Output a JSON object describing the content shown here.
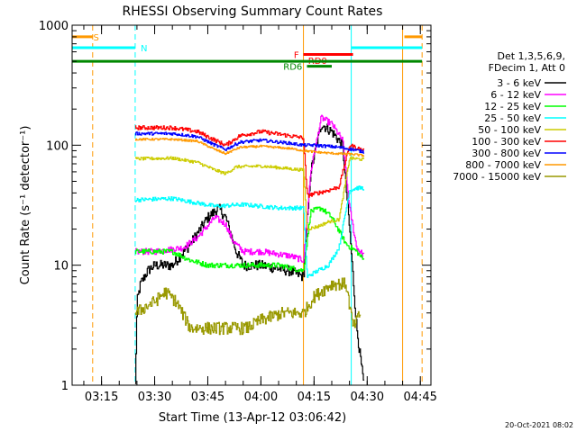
{
  "chart_data": {
    "type": "line",
    "title": "RHESSI Observing Summary Count Rates",
    "xlabel": "Start Time (13-Apr-12 03:06:42)",
    "ylabel": "Count Rate (s⁻¹ detector⁻¹)",
    "yscale": "log",
    "xlim": [
      "03:06:42",
      "04:48:00"
    ],
    "ylim": [
      1,
      1000
    ],
    "x_ticks": [
      "03:15",
      "03:30",
      "03:45",
      "04:00",
      "04:15",
      "04:30",
      "04:45"
    ],
    "y_ticks": [
      {
        "value": 1,
        "label": "1"
      },
      {
        "value": 10,
        "label": "10"
      },
      {
        "value": 100,
        "label": "100"
      },
      {
        "value": 1000,
        "label": "1000"
      }
    ],
    "legend_title": [
      "Det 1,3,5,6,9,",
      "FDecim 1, Att 0"
    ],
    "legend_position": "right",
    "footer": "20-Oct-2021 08:02",
    "series": [
      {
        "name": "3 - 6 keV",
        "color": "#000000",
        "noise": 0.1,
        "points": [
          [
            "03:24:30",
            1
          ],
          [
            "03:25:00",
            5
          ],
          [
            "03:26:00",
            7
          ],
          [
            "03:28:00",
            9
          ],
          [
            "03:30:00",
            10
          ],
          [
            "03:35:00",
            10
          ],
          [
            "03:40:00",
            15
          ],
          [
            "03:45:00",
            25
          ],
          [
            "03:48:00",
            30
          ],
          [
            "03:50:00",
            25
          ],
          [
            "03:53:00",
            13
          ],
          [
            "03:55:00",
            10
          ],
          [
            "04:00:00",
            10
          ],
          [
            "04:08:00",
            9
          ],
          [
            "04:12:00",
            8
          ],
          [
            "04:14:00",
            60
          ],
          [
            "04:17:00",
            150
          ],
          [
            "04:20:00",
            130
          ],
          [
            "04:23:00",
            100
          ],
          [
            "04:25:00",
            20
          ],
          [
            "04:27:00",
            3
          ],
          [
            "04:29:00",
            1
          ]
        ]
      },
      {
        "name": "6 - 12 keV",
        "color": "#ff00ff",
        "noise": 0.06,
        "points": [
          [
            "03:24:30",
            13
          ],
          [
            "03:30:00",
            13
          ],
          [
            "03:38:00",
            14
          ],
          [
            "03:42:00",
            17
          ],
          [
            "03:47:00",
            25
          ],
          [
            "03:50:00",
            22
          ],
          [
            "03:52:00",
            16
          ],
          [
            "03:55:00",
            13
          ],
          [
            "04:00:00",
            13
          ],
          [
            "04:08:00",
            12
          ],
          [
            "04:12:00",
            11
          ],
          [
            "04:14:00",
            60
          ],
          [
            "04:17:00",
            170
          ],
          [
            "04:20:00",
            150
          ],
          [
            "04:23:00",
            110
          ],
          [
            "04:25:00",
            30
          ],
          [
            "04:27:00",
            14
          ],
          [
            "04:29:00",
            12
          ]
        ]
      },
      {
        "name": "12 - 25 keV",
        "color": "#00ff00",
        "noise": 0.05,
        "points": [
          [
            "03:24:30",
            13
          ],
          [
            "03:35:00",
            13
          ],
          [
            "03:40:00",
            11
          ],
          [
            "03:45:00",
            10
          ],
          [
            "03:55:00",
            10
          ],
          [
            "04:05:00",
            10
          ],
          [
            "04:12:00",
            9
          ],
          [
            "04:14:00",
            28
          ],
          [
            "04:17:00",
            30
          ],
          [
            "04:20:00",
            25
          ],
          [
            "04:24:00",
            15
          ],
          [
            "04:27:00",
            13
          ],
          [
            "04:29:00",
            11
          ]
        ]
      },
      {
        "name": "25 - 50 keV",
        "color": "#00ffff",
        "noise": 0.04,
        "points": [
          [
            "03:24:30",
            35
          ],
          [
            "03:35:00",
            36
          ],
          [
            "03:42:00",
            33
          ],
          [
            "03:47:00",
            31
          ],
          [
            "03:55:00",
            32
          ],
          [
            "04:05:00",
            30
          ],
          [
            "04:12:00",
            30
          ],
          [
            "04:13:00",
            8
          ],
          [
            "04:16:00",
            9
          ],
          [
            "04:19:00",
            10
          ],
          [
            "04:22:00",
            14
          ],
          [
            "04:25:00",
            42
          ],
          [
            "04:27:00",
            44
          ],
          [
            "04:29:00",
            44
          ]
        ]
      },
      {
        "name": "50 - 100 keV",
        "color": "#cccc00",
        "noise": 0.03,
        "points": [
          [
            "03:24:30",
            77
          ],
          [
            "03:35:00",
            78
          ],
          [
            "03:42:00",
            72
          ],
          [
            "03:47:00",
            62
          ],
          [
            "03:50:00",
            58
          ],
          [
            "03:53:00",
            66
          ],
          [
            "04:00:00",
            67
          ],
          [
            "04:05:00",
            65
          ],
          [
            "04:12:00",
            62
          ],
          [
            "04:13:00",
            20
          ],
          [
            "04:16:00",
            21
          ],
          [
            "04:19:00",
            23
          ],
          [
            "04:22:00",
            24
          ],
          [
            "04:25:00",
            78
          ],
          [
            "04:27:00",
            77
          ],
          [
            "04:29:00",
            76
          ]
        ]
      },
      {
        "name": "100 - 300 keV",
        "color": "#ff0000",
        "noise": 0.04,
        "points": [
          [
            "03:24:30",
            140
          ],
          [
            "03:35:00",
            140
          ],
          [
            "03:42:00",
            130
          ],
          [
            "03:47:00",
            110
          ],
          [
            "03:50:00",
            100
          ],
          [
            "03:54:00",
            120
          ],
          [
            "04:00:00",
            130
          ],
          [
            "04:08:00",
            120
          ],
          [
            "04:12:00",
            115
          ],
          [
            "04:13:00",
            38
          ],
          [
            "04:16:00",
            40
          ],
          [
            "04:19:00",
            42
          ],
          [
            "04:22:00",
            45
          ],
          [
            "04:25:00",
            100
          ],
          [
            "04:27:00",
            95
          ],
          [
            "04:29:00",
            90
          ]
        ]
      },
      {
        "name": "300 - 800 keV",
        "color": "#0000ff",
        "noise": 0.03,
        "points": [
          [
            "03:24:30",
            125
          ],
          [
            "03:35:00",
            125
          ],
          [
            "03:42:00",
            118
          ],
          [
            "03:47:00",
            100
          ],
          [
            "03:50:00",
            92
          ],
          [
            "03:54:00",
            106
          ],
          [
            "04:00:00",
            110
          ],
          [
            "04:08:00",
            104
          ],
          [
            "04:12:00",
            100
          ],
          [
            "04:15:00",
            100
          ],
          [
            "04:19:00",
            98
          ],
          [
            "04:22:00",
            96
          ],
          [
            "04:26:00",
            92
          ],
          [
            "04:29:00",
            88
          ]
        ]
      },
      {
        "name": "800 - 7000 keV",
        "color": "#ff9900",
        "noise": 0.02,
        "points": [
          [
            "03:24:30",
            112
          ],
          [
            "03:35:00",
            112
          ],
          [
            "03:42:00",
            108
          ],
          [
            "03:47:00",
            92
          ],
          [
            "03:50:00",
            85
          ],
          [
            "03:54:00",
            96
          ],
          [
            "04:00:00",
            98
          ],
          [
            "04:08:00",
            94
          ],
          [
            "04:12:00",
            90
          ],
          [
            "04:15:00",
            88
          ],
          [
            "04:19:00",
            86
          ],
          [
            "04:22:00",
            85
          ],
          [
            "04:26:00",
            84
          ],
          [
            "04:29:00",
            82
          ]
        ]
      },
      {
        "name": "7000 - 15000 keV",
        "color": "#999900",
        "noise": 0.12,
        "points": [
          [
            "03:24:30",
            4
          ],
          [
            "03:30:00",
            5
          ],
          [
            "03:33:00",
            6
          ],
          [
            "03:36:00",
            5
          ],
          [
            "03:40:00",
            3
          ],
          [
            "03:45:00",
            3
          ],
          [
            "03:52:00",
            3
          ],
          [
            "03:56:00",
            3
          ],
          [
            "04:00:00",
            3.5
          ],
          [
            "04:06:00",
            4
          ],
          [
            "04:12:00",
            4
          ],
          [
            "04:15:00",
            5.5
          ],
          [
            "04:20:00",
            7
          ],
          [
            "04:24:00",
            7
          ],
          [
            "04:26:00",
            3
          ],
          [
            "04:28:00",
            4
          ]
        ]
      }
    ],
    "state_bars": [
      {
        "label": "S",
        "color": "#ff9900",
        "start": "03:06:42",
        "end": "03:12:30",
        "level": 800,
        "label_at": "03:13:30"
      },
      {
        "label": "S",
        "color": "#ff9900",
        "start": "04:40:30",
        "end": "04:45:30",
        "level": 800,
        "label_at": ""
      },
      {
        "label": "N",
        "color": "#00ffff",
        "start": "03:06:42",
        "end": "03:24:30",
        "level": 650,
        "label_at": "03:27:00"
      },
      {
        "label": "N",
        "color": "#00ffff",
        "start": "04:25:30",
        "end": "04:45:30",
        "level": 650,
        "label_at": ""
      },
      {
        "label": "F",
        "color": "#ff0000",
        "start": "04:12:00",
        "end": "04:26:00",
        "level": 570,
        "label_at": "04:10:00"
      },
      {
        "label": "RD0",
        "color": "#ff0000",
        "start": "",
        "end": "",
        "level": 510,
        "label_at": "04:16:00"
      },
      {
        "label": "",
        "color": "#008800",
        "start": "03:06:42",
        "end": "04:45:30",
        "level": 500,
        "label_at": ""
      },
      {
        "label": "RD6",
        "color": "#008800",
        "start": "04:13:00",
        "end": "04:20:00",
        "level": 455,
        "label_at": "04:09:00"
      }
    ],
    "vertical_markers": [
      {
        "time": "03:12:30",
        "color": "#ff9900",
        "dashed": true
      },
      {
        "time": "03:24:30",
        "color": "#00ffff",
        "dashed": true
      },
      {
        "time": "04:25:30",
        "color": "#00ffff",
        "dashed": false
      },
      {
        "time": "04:40:00",
        "color": "#ff9900",
        "dashed": false
      },
      {
        "time": "04:45:30",
        "color": "#ff9900",
        "dashed": true
      },
      {
        "time": "04:12:00",
        "color": "#ff9900",
        "dashed": false
      }
    ]
  }
}
